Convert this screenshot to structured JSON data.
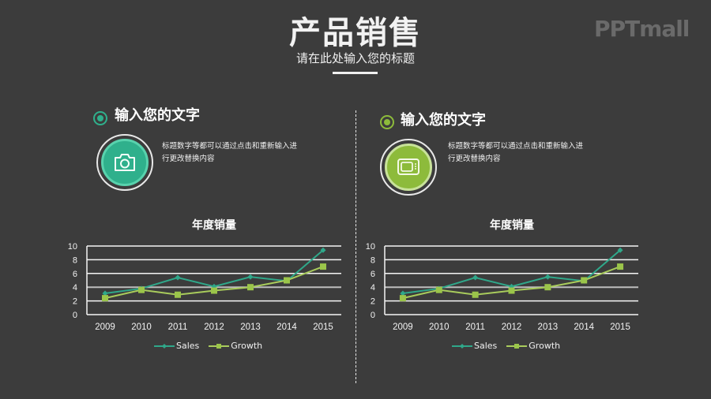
{
  "header": {
    "title": "产品销售",
    "subtitle": "请在此处输入您的标题",
    "logo": "PPTmall"
  },
  "colors": {
    "background": "#3c3c3c",
    "teal": "#2fb08c",
    "teal_light": "#58d2ad",
    "green": "#8dbb3b",
    "green_light": "#c8e29a",
    "sales_line": "#2fa88a",
    "growth_line": "#a9cc5c",
    "growth_marker": "#9bc54a"
  },
  "panels": [
    {
      "heading": "输入您的文字",
      "icon": "camera-icon",
      "accent": "#2fb08c",
      "description_line1": "标题数字等都可以通过点击和重新输入进",
      "description_line2": "行更改替换内容",
      "chart_title": "年度销量"
    },
    {
      "heading": "输入您的文字",
      "icon": "tv-icon",
      "accent": "#8dbb3b",
      "description_line1": "标题数字等都可以通过点击和重新输入进",
      "description_line2": "行更改替换内容",
      "chart_title": "年度销量"
    }
  ],
  "legend": {
    "sales": "Sales",
    "growth": "Growth"
  },
  "chart_data": [
    {
      "type": "line",
      "title": "年度销量",
      "categories": [
        "2009",
        "2010",
        "2011",
        "2012",
        "2013",
        "2014",
        "2015"
      ],
      "series": [
        {
          "name": "Sales",
          "values": [
            3.1,
            3.8,
            5.4,
            4.1,
            5.5,
            4.9,
            9.4
          ],
          "marker": "diamond"
        },
        {
          "name": "Growth",
          "values": [
            2.4,
            3.6,
            2.9,
            3.5,
            4.0,
            5.0,
            7.0
          ],
          "marker": "square"
        }
      ],
      "xlabel": "",
      "ylabel": "",
      "ylim": [
        0,
        10
      ],
      "yticks": [
        0,
        2,
        4,
        6,
        8,
        10
      ],
      "grid": true,
      "legend_position": "bottom"
    },
    {
      "type": "line",
      "title": "年度销量",
      "categories": [
        "2009",
        "2010",
        "2011",
        "2012",
        "2013",
        "2014",
        "2015"
      ],
      "series": [
        {
          "name": "Sales",
          "values": [
            3.1,
            3.8,
            5.4,
            4.1,
            5.5,
            4.9,
            9.4
          ],
          "marker": "diamond"
        },
        {
          "name": "Growth",
          "values": [
            2.4,
            3.6,
            2.9,
            3.5,
            4.0,
            5.0,
            7.0
          ],
          "marker": "square"
        }
      ],
      "xlabel": "",
      "ylabel": "",
      "ylim": [
        0,
        10
      ],
      "yticks": [
        0,
        2,
        4,
        6,
        8,
        10
      ],
      "grid": true,
      "legend_position": "bottom"
    }
  ]
}
